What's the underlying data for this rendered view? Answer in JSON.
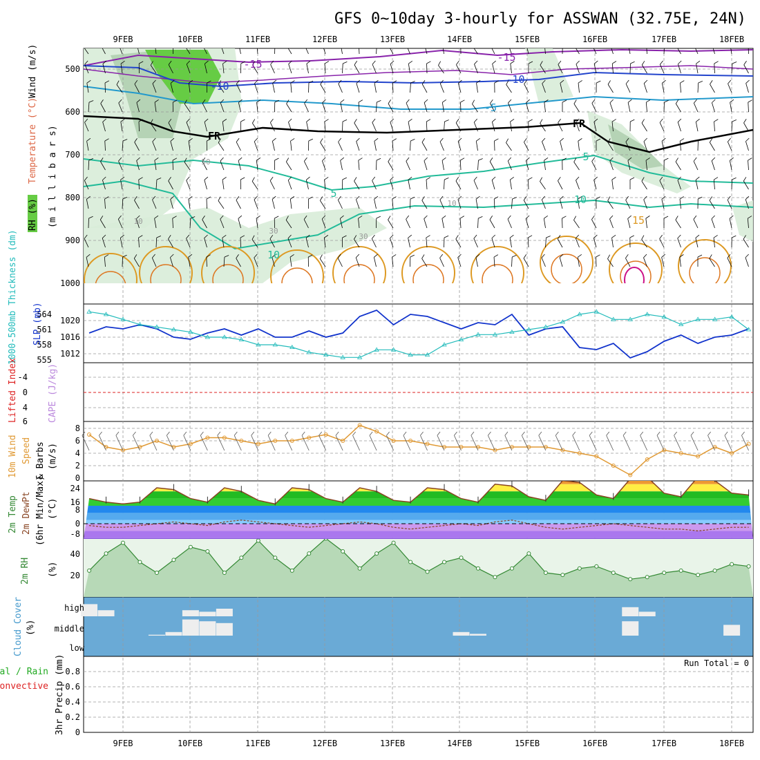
{
  "title": "GFS 0~10day 3-hourly for ASSWAN (32.75E, 24N)",
  "dates": [
    "9FEB",
    "10FEB",
    "11FEB",
    "12FEB",
    "13FEB",
    "14FEB",
    "15FEB",
    "16FEB",
    "17FEB",
    "18FEB"
  ],
  "colors": {
    "rh_green": "#66cc44",
    "rh_light": "#d8ecd8",
    "temp_purple": "#8822aa",
    "temp_blue": "#2244cc",
    "temp_cyan": "#2299cc",
    "temp_teal": "#22bb99",
    "temp_orange": "#dd9922",
    "temp_magenta": "#cc1188",
    "slp_blue": "#1133cc",
    "thick_cyan": "#22bbbb",
    "wind_orange": "#e09933",
    "dewpt_brown": "#884422",
    "cloud_blue": "#6aaad6",
    "rh_line": "#338833",
    "zero_red": "#dd2222"
  },
  "panel1": {
    "ylabel_rh": "RH (%)",
    "ylabel_temp": "Temperature (°C)",
    "ylabel_wind": "Wind (m/s)",
    "ylabel_p": "(m i l l i b a r s)",
    "yticks": [
      "500",
      "600",
      "700",
      "800",
      "900",
      "1000"
    ],
    "labels": [
      "-15",
      "-15",
      "-10",
      "-10",
      "-5",
      "5",
      "5",
      "10",
      "10",
      "15",
      "FR",
      "FR",
      "50",
      "10",
      "30",
      "30",
      "10"
    ]
  },
  "panel2": {
    "ylabel_thick": "1000-500mb Thickness (dm)",
    "ylabel_slp": "SLP (mb)",
    "yticks_thick": [
      "564",
      "561",
      "558",
      "555"
    ],
    "yticks_slp": [
      "1020",
      "1016",
      "1012"
    ]
  },
  "panel3": {
    "ylabel_li": "Lifted Index",
    "ylabel_cape": "CAPE (J/kg)",
    "yticks": [
      "-4",
      "0",
      "4",
      "6"
    ]
  },
  "panel4": {
    "ylabel_1": "10m Wind",
    "ylabel_2": "Speed",
    "ylabel_3": "& Barbs",
    "ylabel_units": "(m/s)",
    "yticks": [
      "8",
      "6",
      "4",
      "2",
      "0"
    ]
  },
  "panel5": {
    "ylabel_1": "2m Temp",
    "ylabel_2": "2m DewPt",
    "ylabel_3": "(6hr Min/Max)",
    "ylabel_units": "(°C)",
    "yticks": [
      "24",
      "16",
      "8",
      "0",
      "-8"
    ]
  },
  "panel6": {
    "ylabel": "2m RH",
    "ylabel_units": "(%)",
    "yticks": [
      "40",
      "20"
    ]
  },
  "panel7": {
    "ylabel": "Cloud Cover",
    "ylabel_units": "(%)",
    "yticks": [
      "high",
      "middle",
      "low"
    ]
  },
  "panel8": {
    "ylabel_1": "Total / Rain",
    "ylabel_2": "Convective",
    "ylabel_3": "3hr Precip (mm)",
    "yticks": [
      "0.8",
      "0.6",
      "0.4",
      "0.2",
      "0"
    ],
    "run_total": "Run Total = 0"
  },
  "chart_data": [
    {
      "type": "line",
      "name_hint": "SLP and 1000-500mb thickness",
      "x_unit": "days from 8FEB 12Z",
      "x": [
        0,
        0.25,
        0.5,
        0.75,
        1,
        1.25,
        1.5,
        1.75,
        2,
        2.25,
        2.5,
        2.75,
        3,
        3.25,
        3.5,
        3.75,
        4,
        4.25,
        4.5,
        4.75,
        5,
        5.25,
        5.5,
        5.75,
        6,
        6.25,
        6.5,
        6.75,
        7,
        7.25,
        7.5,
        7.75,
        8,
        8.25,
        8.5,
        8.75,
        9,
        9.25,
        9.5,
        9.75
      ],
      "series": [
        {
          "name": "SLP (mb)",
          "values": [
            1017,
            1018.5,
            1018,
            1019,
            1018,
            1016,
            1015.5,
            1017,
            1018,
            1016.5,
            1018,
            1016,
            1016,
            1017.5,
            1016,
            1017,
            1021,
            1022.5,
            1019,
            1021.5,
            1021,
            1019.5,
            1018,
            1019.5,
            1019,
            1021.5,
            1016.5,
            1018,
            1018.5,
            1013.5,
            1013,
            1014.5,
            1011,
            1012.5,
            1015,
            1016.5,
            1014.5,
            1016,
            1016.5,
            1018
          ]
        },
        {
          "name": "1000-500mb Thickness (dm)",
          "values": [
            564.5,
            564,
            563,
            562,
            561.5,
            561,
            560.5,
            559.5,
            559.5,
            559,
            558,
            558,
            557.5,
            556.5,
            556,
            555.5,
            555.5,
            557,
            557,
            556,
            556,
            558,
            559,
            560,
            560,
            560.5,
            561,
            561.5,
            562.5,
            564,
            564.5,
            563,
            563,
            564,
            563.5,
            562,
            563,
            563,
            563.5,
            561
          ]
        }
      ],
      "ylim_slp": [
        1010,
        1024
      ],
      "ylim_thick": [
        555,
        566
      ]
    },
    {
      "type": "line",
      "name_hint": "10m wind speed",
      "x": [
        0,
        0.25,
        0.5,
        0.75,
        1,
        1.25,
        1.5,
        1.75,
        2,
        2.25,
        2.5,
        2.75,
        3,
        3.25,
        3.5,
        3.75,
        4,
        4.25,
        4.5,
        4.75,
        5,
        5.25,
        5.5,
        5.75,
        6,
        6.25,
        6.5,
        6.75,
        7,
        7.25,
        7.5,
        7.75,
        8,
        8.25,
        8.5,
        8.75,
        9,
        9.25,
        9.5,
        9.75
      ],
      "series": [
        {
          "name": "Speed (m/s)",
          "values": [
            7,
            5,
            4.5,
            5,
            6,
            5,
            5.5,
            6.5,
            6.5,
            6,
            5.5,
            6,
            6,
            6.5,
            7,
            6,
            8.5,
            7.5,
            6,
            6,
            5.5,
            5,
            5,
            5,
            4.5,
            5,
            5,
            5,
            4.5,
            4,
            3.5,
            2,
            0.5,
            3,
            4.5,
            4,
            3.5,
            5,
            4,
            5.5
          ]
        }
      ],
      "ylim": [
        0,
        8
      ]
    },
    {
      "type": "area",
      "name_hint": "2m temperature and dew point",
      "x": [
        0,
        0.25,
        0.5,
        0.75,
        1,
        1.25,
        1.5,
        1.75,
        2,
        2.25,
        2.5,
        2.75,
        3,
        3.25,
        3.5,
        3.75,
        4,
        4.25,
        4.5,
        4.75,
        5,
        5.25,
        5.5,
        5.75,
        6,
        6.25,
        6.5,
        6.75,
        7,
        7.25,
        7.5,
        7.75,
        8,
        8.25,
        8.5,
        8.75,
        9,
        9.25,
        9.5,
        9.75
      ],
      "series": [
        {
          "name": "2m Temp",
          "values": [
            14,
            12,
            11,
            12,
            20,
            19,
            14,
            12,
            20,
            18,
            13,
            11,
            20,
            19,
            14,
            12,
            20,
            18,
            13,
            12,
            20,
            19,
            14,
            12,
            22,
            21,
            15,
            13,
            24,
            23,
            16,
            14,
            25,
            26,
            17,
            15,
            26,
            24,
            17,
            16
          ]
        },
        {
          "name": "2m DewPt",
          "values": [
            -1,
            -2,
            -2,
            -1,
            0,
            1,
            0,
            -1,
            1,
            2,
            1,
            0,
            -1,
            -2,
            -1,
            0,
            1,
            0,
            -2,
            -3,
            -2,
            -1,
            0,
            -1,
            1,
            2,
            0,
            -2,
            -3,
            -2,
            -1,
            0,
            -1,
            -2,
            -3,
            -3,
            -4,
            -3,
            -2,
            -2
          ]
        }
      ],
      "ylim": [
        -12,
        28
      ]
    },
    {
      "type": "area",
      "name_hint": "2m relative humidity",
      "x": [
        0,
        0.25,
        0.5,
        0.75,
        1,
        1.25,
        1.5,
        1.75,
        2,
        2.25,
        2.5,
        2.75,
        3,
        3.25,
        3.5,
        3.75,
        4,
        4.25,
        4.5,
        4.75,
        5,
        5.25,
        5.5,
        5.75,
        6,
        6.25,
        6.5,
        6.75,
        7,
        7.25,
        7.5,
        7.75,
        8,
        8.25,
        8.5,
        8.75,
        9,
        9.25,
        9.5,
        9.75
      ],
      "series": [
        {
          "name": "RH (%)",
          "values": [
            22,
            38,
            48,
            30,
            20,
            32,
            44,
            40,
            20,
            34,
            50,
            34,
            22,
            38,
            52,
            40,
            24,
            38,
            48,
            30,
            21,
            30,
            34,
            24,
            16,
            24,
            38,
            20,
            18,
            24,
            26,
            20,
            14,
            16,
            20,
            22,
            18,
            22,
            28,
            26
          ]
        }
      ],
      "ylim": [
        0,
        55
      ]
    },
    {
      "type": "bar",
      "name_hint": "cloud cover",
      "levels": [
        "high",
        "middle",
        "low"
      ],
      "x": [
        0,
        0.25,
        0.5,
        0.75,
        1,
        1.25,
        1.5,
        1.75,
        2,
        2.25,
        2.5,
        2.75,
        3,
        3.25,
        3.5,
        3.75,
        4,
        4.25,
        4.5,
        4.75,
        5,
        5.25,
        5.5,
        5.75,
        6,
        6.25,
        6.5,
        6.75,
        7,
        7.25,
        7.5,
        7.75,
        8,
        8.25,
        8.5,
        8.75,
        9,
        9.25,
        9.5,
        9.75
      ],
      "series": [
        {
          "name": "high",
          "values": [
            80,
            40,
            0,
            0,
            0,
            0,
            40,
            30,
            50,
            0,
            0,
            0,
            0,
            0,
            0,
            0,
            0,
            0,
            0,
            0,
            0,
            0,
            0,
            0,
            0,
            0,
            0,
            0,
            0,
            0,
            0,
            0,
            60,
            30,
            0,
            0,
            0,
            0,
            0,
            0
          ]
        },
        {
          "name": "middle",
          "values": [
            0,
            0,
            0,
            0,
            5,
            20,
            90,
            80,
            70,
            0,
            0,
            0,
            0,
            0,
            0,
            0,
            0,
            0,
            0,
            0,
            0,
            0,
            20,
            10,
            0,
            0,
            0,
            0,
            0,
            0,
            0,
            0,
            80,
            0,
            0,
            0,
            0,
            0,
            60,
            0
          ]
        }
      ]
    },
    {
      "type": "bar",
      "name_hint": "3hr precipitation",
      "values": [
        0,
        0,
        0,
        0,
        0,
        0,
        0,
        0,
        0,
        0,
        0,
        0,
        0,
        0,
        0,
        0,
        0,
        0,
        0,
        0,
        0,
        0,
        0,
        0,
        0,
        0,
        0,
        0,
        0,
        0,
        0,
        0,
        0,
        0,
        0,
        0,
        0,
        0,
        0,
        0
      ],
      "ylim": [
        0,
        1
      ]
    }
  ]
}
